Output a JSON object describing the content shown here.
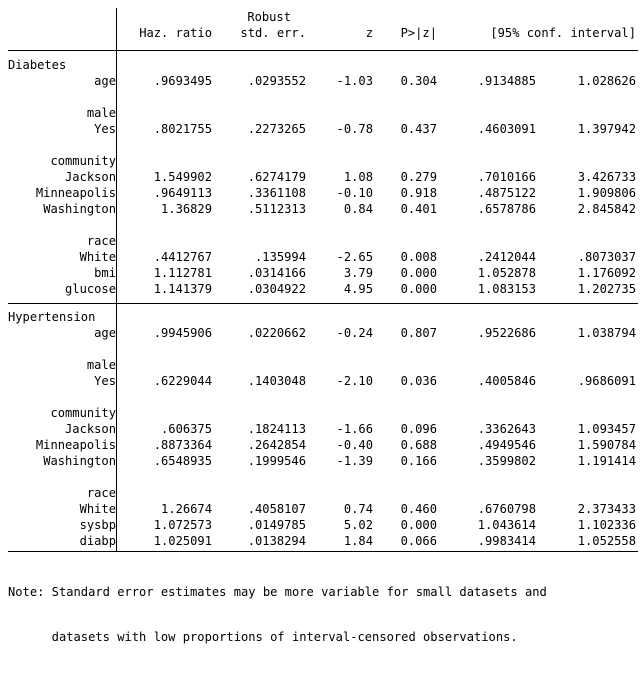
{
  "header": {
    "robust": "Robust",
    "haz_ratio": "Haz. ratio",
    "std_err": "std. err.",
    "z": "z",
    "p": "P>|z|",
    "ci": "[95% conf. interval]"
  },
  "sections": [
    {
      "title": "Diabetes",
      "rows": [
        {
          "label": "age",
          "hr": ".9693495",
          "se": ".0293552",
          "z": "-1.03",
          "p": "0.304",
          "lo": ".9134885",
          "hi": "1.028626"
        },
        {
          "label": "male",
          "header": true
        },
        {
          "label": "Yes",
          "hr": ".8021755",
          "se": ".2273265",
          "z": "-0.78",
          "p": "0.437",
          "lo": ".4603091",
          "hi": "1.397942"
        },
        {
          "label": "community",
          "header": true
        },
        {
          "label": "Jackson",
          "hr": "1.549902",
          "se": ".6274179",
          "z": "1.08",
          "p": "0.279",
          "lo": ".7010166",
          "hi": "3.426733"
        },
        {
          "label": "Minneapolis",
          "hr": ".9649113",
          "se": ".3361108",
          "z": "-0.10",
          "p": "0.918",
          "lo": ".4875122",
          "hi": "1.909806"
        },
        {
          "label": "Washington",
          "hr": "1.36829",
          "se": ".5112313",
          "z": "0.84",
          "p": "0.401",
          "lo": ".6578786",
          "hi": "2.845842"
        },
        {
          "label": "race",
          "header": true
        },
        {
          "label": "White",
          "hr": ".4412767",
          "se": ".135994",
          "z": "-2.65",
          "p": "0.008",
          "lo": ".2412044",
          "hi": ".8073037"
        },
        {
          "label": "bmi",
          "hr": "1.112781",
          "se": ".0314166",
          "z": "3.79",
          "p": "0.000",
          "lo": "1.052878",
          "hi": "1.176092"
        },
        {
          "label": "glucose",
          "hr": "1.141379",
          "se": ".0304922",
          "z": "4.95",
          "p": "0.000",
          "lo": "1.083153",
          "hi": "1.202735"
        }
      ]
    },
    {
      "title": "Hypertension",
      "rows": [
        {
          "label": "age",
          "hr": ".9945906",
          "se": ".0220662",
          "z": "-0.24",
          "p": "0.807",
          "lo": ".9522686",
          "hi": "1.038794"
        },
        {
          "label": "male",
          "header": true
        },
        {
          "label": "Yes",
          "hr": ".6229044",
          "se": ".1403048",
          "z": "-2.10",
          "p": "0.036",
          "lo": ".4005846",
          "hi": ".9686091"
        },
        {
          "label": "community",
          "header": true
        },
        {
          "label": "Jackson",
          "hr": ".606375",
          "se": ".1824113",
          "z": "-1.66",
          "p": "0.096",
          "lo": ".3362643",
          "hi": "1.093457"
        },
        {
          "label": "Minneapolis",
          "hr": ".8873364",
          "se": ".2642854",
          "z": "-0.40",
          "p": "0.688",
          "lo": ".4949546",
          "hi": "1.590784"
        },
        {
          "label": "Washington",
          "hr": ".6548935",
          "se": ".1999546",
          "z": "-1.39",
          "p": "0.166",
          "lo": ".3599802",
          "hi": "1.191414"
        },
        {
          "label": "race",
          "header": true
        },
        {
          "label": "White",
          "hr": "1.26674",
          "se": ".4058107",
          "z": "0.74",
          "p": "0.460",
          "lo": ".6760798",
          "hi": "2.373433"
        },
        {
          "label": "sysbp",
          "hr": "1.072573",
          "se": ".0149785",
          "z": "5.02",
          "p": "0.000",
          "lo": "1.043614",
          "hi": "1.102336"
        },
        {
          "label": "diabp",
          "hr": "1.025091",
          "se": ".0138294",
          "z": "1.84",
          "p": "0.066",
          "lo": ".9983414",
          "hi": "1.052558"
        }
      ]
    }
  ],
  "note": {
    "line1": "Note: Standard error estimates may be more variable for small datasets and",
    "line2": "      datasets with low proportions of interval-censored observations."
  }
}
